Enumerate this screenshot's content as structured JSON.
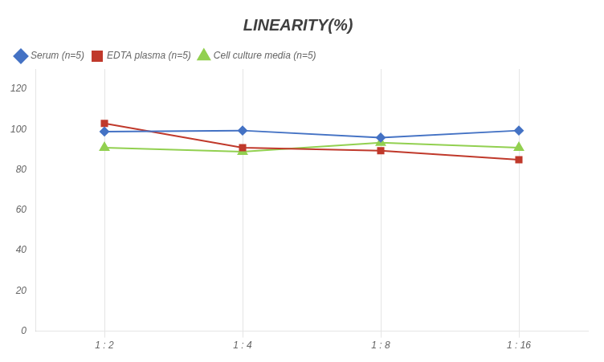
{
  "chart_data": {
    "type": "line",
    "title": "LINEARITY(%)",
    "categories": [
      "1 : 2",
      "1 : 4",
      "1 : 8",
      "1 : 16"
    ],
    "series": [
      {
        "name": "Serum (n=5)",
        "color": "#4472C4",
        "marker": "diamond",
        "values": [
          99,
          99.5,
          96,
          99.5
        ]
      },
      {
        "name": "EDTA plasma (n=5)",
        "color": "#C0392B",
        "marker": "square",
        "values": [
          103,
          91,
          89.5,
          85
        ]
      },
      {
        "name": "Cell culture media (n=5)",
        "color": "#92D050",
        "marker": "triangle",
        "values": [
          91,
          89,
          93.5,
          91
        ]
      }
    ],
    "ylim": [
      0,
      130
    ],
    "yticks": [
      0,
      20,
      40,
      60,
      80,
      100,
      120
    ],
    "grid": "x",
    "legend": "upper left"
  }
}
